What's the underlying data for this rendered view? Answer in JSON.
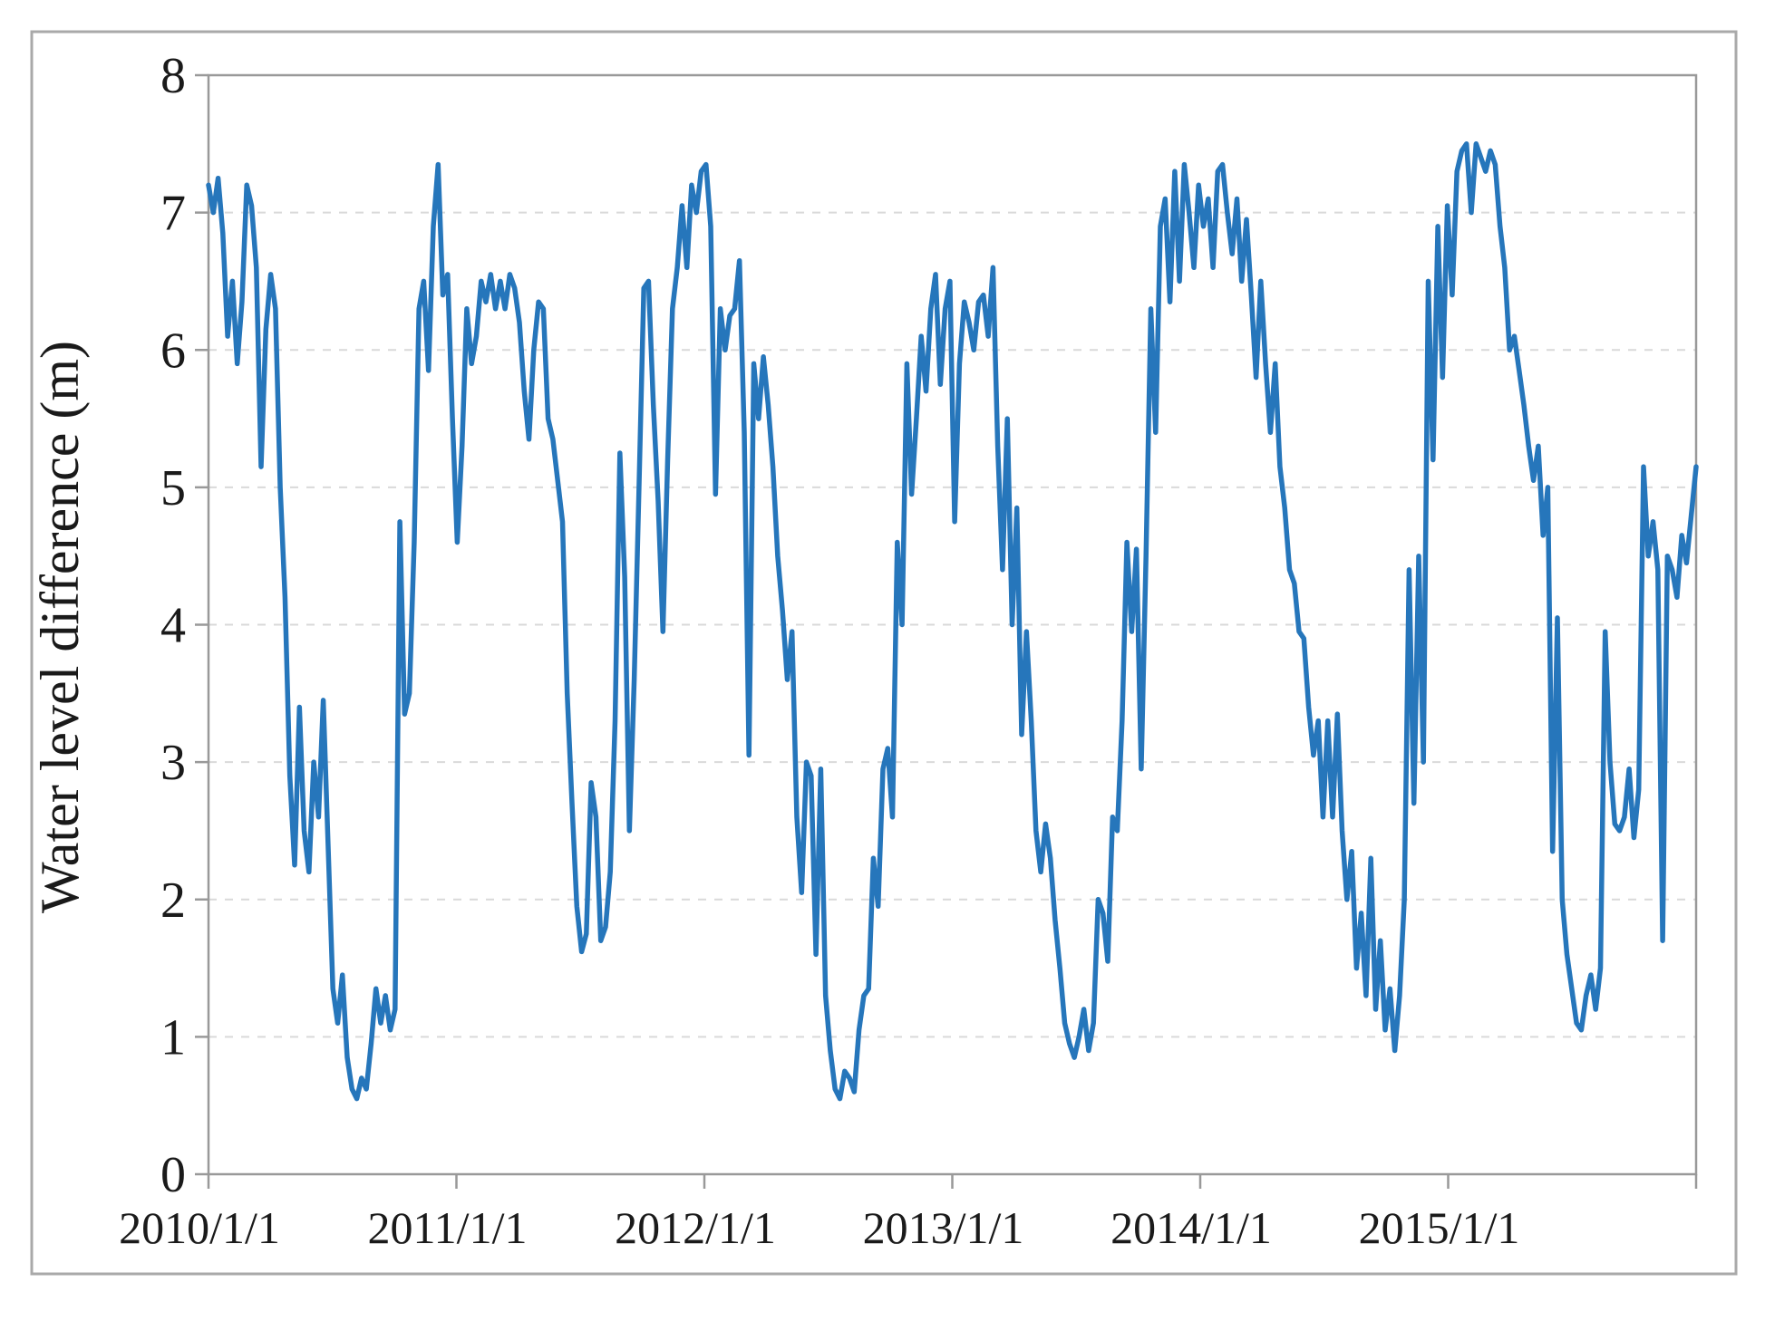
{
  "figure": {
    "kind": "time-series line chart",
    "background": "#ffffff"
  },
  "colors": {
    "line": "#2676bb",
    "gridline": "#d9d9d9",
    "axis": "#999999",
    "figure_border": "#a9a9a9",
    "text": "#1a1a1a"
  },
  "chart_data": {
    "type": "line",
    "title": "",
    "xlabel": "",
    "ylabel": "Water level difference (m)",
    "ylim": [
      0,
      8
    ],
    "y_tick_labels": [
      "0",
      "1",
      "2",
      "3",
      "4",
      "5",
      "6",
      "7",
      "8"
    ],
    "x_tick_labels": [
      "2010/1/1",
      "2011/1/1",
      "2012/1/1",
      "2013/1/1",
      "2014/1/1",
      "2015/1/1"
    ],
    "x_range_note": "weekly samples from 2010/1/1 through end of 2015",
    "sample_interval_days": 7,
    "grid": "horizontal-dashed",
    "legend": "none",
    "series": [
      {
        "name": "Water level difference",
        "color": "#2676bb",
        "values": [
          7.2,
          7.0,
          7.25,
          6.85,
          6.1,
          6.5,
          5.9,
          6.35,
          7.2,
          7.05,
          6.6,
          5.15,
          6.15,
          6.55,
          6.3,
          5.0,
          4.2,
          2.9,
          2.25,
          3.4,
          2.5,
          2.2,
          3.0,
          2.6,
          3.45,
          2.4,
          1.35,
          1.1,
          1.45,
          0.85,
          0.62,
          0.55,
          0.7,
          0.62,
          0.95,
          1.35,
          1.1,
          1.3,
          1.05,
          1.2,
          4.75,
          3.35,
          3.5,
          4.6,
          6.3,
          6.5,
          5.85,
          6.9,
          7.35,
          6.4,
          6.55,
          5.5,
          4.6,
          5.3,
          6.3,
          5.9,
          6.1,
          6.5,
          6.35,
          6.55,
          6.3,
          6.5,
          6.3,
          6.55,
          6.45,
          6.2,
          5.7,
          5.35,
          6.0,
          6.35,
          6.3,
          5.5,
          5.35,
          5.05,
          4.75,
          3.5,
          2.7,
          1.95,
          1.62,
          1.75,
          2.85,
          2.6,
          1.7,
          1.8,
          2.2,
          3.3,
          5.25,
          4.35,
          2.5,
          3.6,
          5.0,
          6.45,
          6.5,
          5.6,
          4.9,
          3.95,
          5.2,
          6.3,
          6.6,
          7.05,
          6.6,
          7.2,
          7.0,
          7.3,
          7.35,
          6.9,
          4.95,
          6.3,
          6.0,
          6.25,
          6.3,
          6.65,
          5.4,
          3.05,
          5.9,
          5.5,
          5.95,
          5.6,
          5.15,
          4.5,
          4.1,
          3.6,
          3.95,
          2.6,
          2.05,
          3.0,
          2.9,
          1.6,
          2.95,
          1.3,
          0.9,
          0.62,
          0.55,
          0.75,
          0.7,
          0.6,
          1.05,
          1.3,
          1.35,
          2.3,
          1.95,
          2.95,
          3.1,
          2.6,
          4.6,
          4.0,
          5.9,
          4.95,
          5.5,
          6.1,
          5.7,
          6.3,
          6.55,
          5.75,
          6.3,
          6.5,
          4.75,
          5.9,
          6.35,
          6.2,
          6.0,
          6.35,
          6.4,
          6.1,
          6.6,
          5.3,
          4.4,
          5.5,
          4.0,
          4.85,
          3.2,
          3.95,
          3.3,
          2.5,
          2.2,
          2.55,
          2.3,
          1.85,
          1.5,
          1.1,
          0.95,
          0.85,
          1.0,
          1.2,
          0.9,
          1.1,
          2.0,
          1.9,
          1.55,
          2.6,
          2.5,
          3.3,
          4.6,
          3.95,
          4.55,
          2.95,
          4.5,
          6.3,
          5.4,
          6.9,
          7.1,
          6.35,
          7.3,
          6.5,
          7.35,
          7.0,
          6.6,
          7.2,
          6.9,
          7.1,
          6.6,
          7.3,
          7.35,
          7.0,
          6.7,
          7.1,
          6.5,
          6.95,
          6.4,
          5.8,
          6.5,
          5.9,
          5.4,
          5.9,
          5.15,
          4.85,
          4.4,
          4.3,
          3.95,
          3.9,
          3.4,
          3.05,
          3.3,
          2.6,
          3.3,
          2.6,
          3.35,
          2.5,
          2.0,
          2.35,
          1.5,
          1.9,
          1.3,
          2.3,
          1.2,
          1.7,
          1.05,
          1.35,
          0.9,
          1.3,
          2.0,
          4.4,
          2.7,
          4.5,
          3.0,
          6.5,
          5.2,
          6.9,
          5.8,
          7.05,
          6.4,
          7.3,
          7.45,
          7.5,
          7.0,
          7.5,
          7.4,
          7.3,
          7.45,
          7.35,
          6.9,
          6.6,
          6.0,
          6.1,
          5.85,
          5.6,
          5.3,
          5.05,
          5.3,
          4.65,
          5.0,
          2.35,
          4.05,
          2.0,
          1.6,
          1.35,
          1.1,
          1.05,
          1.3,
          1.45,
          1.2,
          1.5,
          3.95,
          3.0,
          2.55,
          2.5,
          2.6,
          2.95,
          2.45,
          2.8,
          5.15,
          4.5,
          4.75,
          4.4,
          1.7,
          4.5,
          4.4,
          4.2,
          4.65,
          4.45,
          4.8,
          5.15
        ]
      }
    ]
  }
}
